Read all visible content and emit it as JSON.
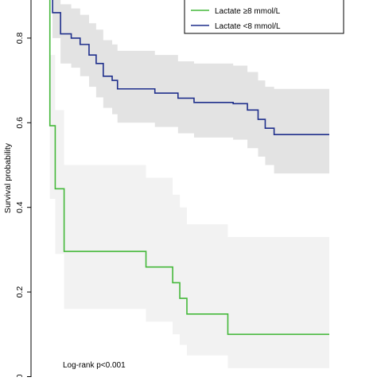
{
  "chart_data": {
    "type": "line",
    "subtype": "kaplan-meier",
    "title": "",
    "xlabel": "",
    "ylabel": "Survival probability",
    "ylim": [
      0,
      1
    ],
    "yticks": [
      {
        "value": 0.2,
        "label": "0.2"
      },
      {
        "value": 0.4,
        "label": "0.4"
      },
      {
        "value": 0.6,
        "label": "0.6"
      },
      {
        "value": 0.8,
        "label": "0.8"
      },
      {
        "value": 0.0,
        "label": "0"
      }
    ],
    "legend": {
      "position": "top-right"
    },
    "annotation": "Log-rank p<0.001",
    "series": [
      {
        "name": "Lactate ≥8 mmol/L",
        "color": "#44b83a",
        "band_color": "#f2f2f2",
        "steps": [
          [
            0,
            1.0
          ],
          [
            0.3,
            0.593
          ],
          [
            0.6,
            0.444
          ],
          [
            1.1,
            0.296
          ],
          [
            5.7,
            0.259
          ],
          [
            7.2,
            0.222
          ],
          [
            7.6,
            0.185
          ],
          [
            8.0,
            0.148
          ],
          [
            10.3,
            0.1
          ],
          [
            16.0,
            0.1
          ]
        ],
        "ci_lower": [
          [
            0,
            1.0
          ],
          [
            0.3,
            0.42
          ],
          [
            0.6,
            0.29
          ],
          [
            1.1,
            0.16
          ],
          [
            5.7,
            0.13
          ],
          [
            7.2,
            0.1
          ],
          [
            7.6,
            0.075
          ],
          [
            8.0,
            0.05
          ],
          [
            10.3,
            0.02
          ],
          [
            16.0,
            0.02
          ]
        ],
        "ci_upper": [
          [
            0,
            1.0
          ],
          [
            0.3,
            0.76
          ],
          [
            0.6,
            0.63
          ],
          [
            1.1,
            0.5
          ],
          [
            5.7,
            0.47
          ],
          [
            7.2,
            0.43
          ],
          [
            7.6,
            0.4
          ],
          [
            8.0,
            0.36
          ],
          [
            10.3,
            0.33
          ],
          [
            16.0,
            0.33
          ]
        ]
      },
      {
        "name": "Lactate <8 mmol/L",
        "color": "#1f2f8c",
        "band_color": "#e3e3e3",
        "steps": [
          [
            0,
            1.0
          ],
          [
            0.45,
            0.86
          ],
          [
            0.9,
            0.81
          ],
          [
            1.5,
            0.8
          ],
          [
            2.0,
            0.785
          ],
          [
            2.5,
            0.76
          ],
          [
            2.9,
            0.74
          ],
          [
            3.3,
            0.71
          ],
          [
            3.8,
            0.7
          ],
          [
            4.1,
            0.68
          ],
          [
            6.2,
            0.67
          ],
          [
            7.5,
            0.658
          ],
          [
            8.4,
            0.648
          ],
          [
            10.6,
            0.645
          ],
          [
            11.4,
            0.63
          ],
          [
            12.0,
            0.608
          ],
          [
            12.4,
            0.587
          ],
          [
            12.9,
            0.572
          ],
          [
            16.0,
            0.572
          ]
        ],
        "ci_lower": [
          [
            0,
            1.0
          ],
          [
            0.45,
            0.8
          ],
          [
            0.9,
            0.74
          ],
          [
            1.5,
            0.73
          ],
          [
            2.0,
            0.71
          ],
          [
            2.5,
            0.685
          ],
          [
            2.9,
            0.66
          ],
          [
            3.3,
            0.635
          ],
          [
            3.8,
            0.62
          ],
          [
            4.1,
            0.6
          ],
          [
            6.2,
            0.59
          ],
          [
            7.5,
            0.575
          ],
          [
            8.4,
            0.565
          ],
          [
            10.6,
            0.56
          ],
          [
            11.4,
            0.54
          ],
          [
            12.0,
            0.52
          ],
          [
            12.4,
            0.5
          ],
          [
            12.9,
            0.48
          ],
          [
            16.0,
            0.48
          ]
        ],
        "ci_upper": [
          [
            0,
            1.0
          ],
          [
            0.45,
            0.92
          ],
          [
            0.9,
            0.88
          ],
          [
            1.5,
            0.87
          ],
          [
            2.0,
            0.855
          ],
          [
            2.5,
            0.835
          ],
          [
            2.9,
            0.82
          ],
          [
            3.3,
            0.795
          ],
          [
            3.8,
            0.785
          ],
          [
            4.1,
            0.77
          ],
          [
            6.2,
            0.76
          ],
          [
            7.5,
            0.745
          ],
          [
            8.4,
            0.74
          ],
          [
            10.6,
            0.735
          ],
          [
            11.4,
            0.72
          ],
          [
            12.0,
            0.7
          ],
          [
            12.4,
            0.685
          ],
          [
            12.9,
            0.68
          ],
          [
            16.0,
            0.68
          ]
        ]
      }
    ]
  }
}
